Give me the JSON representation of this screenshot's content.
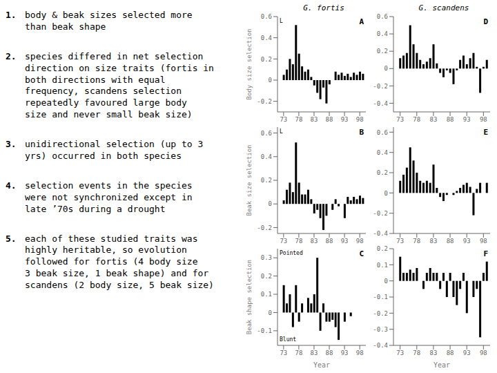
{
  "chart_data": [
    {
      "type": "bar",
      "title": "G. fortis",
      "ylabel": "Body size selection",
      "annotations": [
        "A",
        "L"
      ],
      "color": "#000000",
      "x": [
        73,
        74,
        75,
        76,
        77,
        78,
        79,
        80,
        81,
        82,
        83,
        84,
        85,
        86,
        87,
        88,
        89,
        90,
        91,
        92,
        93,
        94,
        95,
        96,
        97,
        98,
        99
      ],
      "values": [
        0.05,
        0.1,
        0.2,
        0.15,
        0.52,
        0.25,
        0.13,
        0.08,
        0.1,
        0.03,
        -0.05,
        -0.12,
        -0.18,
        -0.07,
        -0.22,
        -0.04,
        0.0,
        0.08,
        0.05,
        0.07,
        0.04,
        0.06,
        0.03,
        0.07,
        0.05,
        0.08,
        0.06
      ],
      "xlim": [
        71,
        100
      ],
      "xticks": [
        73,
        78,
        83,
        88,
        93,
        98
      ],
      "ylim": [
        -0.3,
        0.6
      ],
      "yticks": [
        -0.2,
        0,
        0.2,
        0.4,
        0.6
      ],
      "grid": false
    },
    {
      "type": "bar",
      "title": "G. scandens",
      "annotations": [
        "D"
      ],
      "color": "#000000",
      "x": [
        73,
        74,
        75,
        76,
        77,
        78,
        79,
        80,
        81,
        82,
        83,
        84,
        85,
        86,
        87,
        88,
        89,
        90,
        91,
        92,
        93,
        94,
        95,
        96,
        97,
        98,
        99
      ],
      "values": [
        0.12,
        0.15,
        0.18,
        0.5,
        0.28,
        0.18,
        0.1,
        0.05,
        0.08,
        0.12,
        0.28,
        0.06,
        -0.05,
        -0.1,
        -0.02,
        -0.05,
        -0.18,
        -0.02,
        0.1,
        0.15,
        0.05,
        0.12,
        0.18,
        0.02,
        -0.28,
        0.02,
        0.1
      ],
      "xlim": [
        71,
        100
      ],
      "xticks": [
        73,
        78,
        83,
        88,
        93,
        98
      ],
      "ylim": [
        -0.5,
        0.6
      ],
      "yticks": [
        -0.4,
        -0.2,
        0,
        0.2,
        0.4,
        0.6
      ],
      "grid": false
    },
    {
      "type": "bar",
      "ylabel": "Beak size selection",
      "annotations": [
        "B",
        "L"
      ],
      "color": "#000000",
      "x": [
        73,
        74,
        75,
        76,
        77,
        78,
        79,
        80,
        81,
        82,
        83,
        84,
        85,
        86,
        87,
        88,
        89,
        90,
        91,
        92,
        93,
        94,
        95,
        96,
        97,
        98,
        99
      ],
      "values": [
        0.03,
        0.12,
        0.18,
        0.1,
        0.52,
        0.18,
        0.08,
        0.08,
        0.12,
        0.04,
        -0.08,
        -0.05,
        -0.12,
        -0.22,
        -0.1,
        0.0,
        -0.05,
        0.04,
        -0.02,
        0.0,
        -0.12,
        0.06,
        0.03,
        0.06,
        0.04,
        0.07,
        0.05
      ],
      "xlim": [
        71,
        100
      ],
      "xticks": [
        73,
        78,
        83,
        88,
        93,
        98
      ],
      "ylim": [
        -0.25,
        0.65
      ],
      "yticks": [
        -0.2,
        0,
        0.2,
        0.4,
        0.6
      ],
      "grid": false
    },
    {
      "type": "bar",
      "annotations": [
        "E"
      ],
      "color": "#000000",
      "x": [
        73,
        74,
        75,
        76,
        77,
        78,
        79,
        80,
        81,
        82,
        83,
        84,
        85,
        86,
        87,
        88,
        89,
        90,
        91,
        92,
        93,
        94,
        95,
        96,
        97,
        98,
        99
      ],
      "values": [
        0.12,
        0.18,
        0.25,
        0.45,
        0.32,
        0.2,
        0.12,
        0.1,
        0.12,
        0.1,
        0.28,
        0.05,
        -0.04,
        -0.08,
        -0.02,
        0.0,
        -0.02,
        0.02,
        0.05,
        0.08,
        0.1,
        0.06,
        -0.22,
        0.04,
        0.1,
        0.0,
        0.1
      ],
      "xlim": [
        71,
        100
      ],
      "xticks": [
        73,
        78,
        83,
        88,
        93,
        98
      ],
      "ylim": [
        -0.4,
        0.65
      ],
      "yticks": [
        -0.4,
        -0.2,
        0,
        0.2,
        0.4,
        0.6
      ],
      "grid": false
    },
    {
      "type": "bar",
      "ylabel": "Beak shape selection",
      "xlabel": "Year",
      "annotations": [
        "C",
        "Pointed",
        "Blunt"
      ],
      "color": "#000000",
      "x": [
        73,
        74,
        75,
        76,
        77,
        78,
        79,
        80,
        81,
        82,
        83,
        84,
        85,
        86,
        87,
        88,
        89,
        90,
        91,
        92,
        93,
        94,
        95,
        96,
        97,
        98,
        99
      ],
      "values": [
        0.15,
        0.05,
        0.1,
        -0.08,
        0.15,
        -0.05,
        0.05,
        0.0,
        0.08,
        0.05,
        0.1,
        0.3,
        -0.1,
        0.05,
        -0.05,
        -0.05,
        -0.04,
        -0.08,
        -0.15,
        0.0,
        -0.05,
        0.0,
        -0.02,
        0.0,
        0.0,
        0.0,
        0.0
      ],
      "xlim": [
        71,
        100
      ],
      "xticks": [
        73,
        78,
        83,
        88,
        93,
        98
      ],
      "ylim": [
        -0.18,
        0.35
      ],
      "yticks": [
        -0.1,
        0,
        0.1,
        0.2,
        0.3
      ],
      "grid": false
    },
    {
      "type": "bar",
      "xlabel": "Year",
      "annotations": [
        "F"
      ],
      "color": "#000000",
      "x": [
        73,
        74,
        75,
        76,
        77,
        78,
        79,
        80,
        81,
        82,
        83,
        84,
        85,
        86,
        87,
        88,
        89,
        90,
        91,
        92,
        93,
        94,
        95,
        96,
        97,
        98,
        99
      ],
      "values": [
        0.15,
        0.05,
        0.05,
        0.07,
        0.05,
        0.08,
        0.0,
        -0.05,
        0.05,
        0.08,
        0.05,
        0.05,
        -0.05,
        0.05,
        -0.1,
        0.05,
        -0.1,
        -0.15,
        -0.05,
        0.05,
        -0.2,
        0.0,
        -0.1,
        -0.05,
        -0.35,
        0.05,
        0.12
      ],
      "xlim": [
        71,
        100
      ],
      "xticks": [
        73,
        78,
        83,
        88,
        93,
        98
      ],
      "ylim": [
        -0.4,
        0.2
      ],
      "yticks": [
        -0.4,
        -0.3,
        -0.2,
        -0.1,
        0,
        0.1,
        0.2
      ],
      "grid": false
    }
  ],
  "annotations": [
    {
      "label": "1.",
      "text": "body & beak sizes selected more\nthan beak shape"
    },
    {
      "label": "2.",
      "text": "species differed in net selection\ndirection on size traits (fortis in\nboth directions with equal\nfrequency, scandens selection\nrepeatedly favoured large body\nsize and never small beak size)"
    },
    {
      "label": "3.",
      "text": "unidirectional selection (up to 3\nyrs) occurred in both species"
    },
    {
      "label": "4.",
      "text": "selection events in the species\nwere not synchronized except in\nlate ’70s during a drought"
    },
    {
      "label": "5.",
      "text": "each of these studied traits was\nhighly heritable, so evolution\nfollowed for fortis (4 body size\n3 beak size, 1 beak shape) and for scandens (2 body size, 5 beak size)"
    }
  ]
}
